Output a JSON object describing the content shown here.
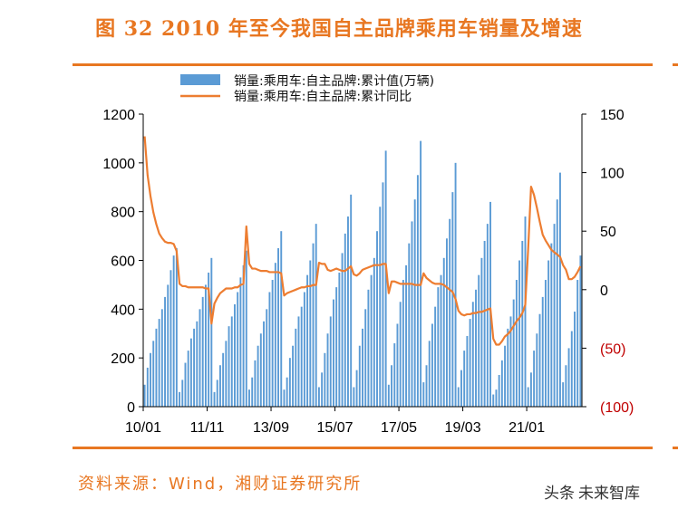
{
  "title": "图 32 2010 年至今我国自主品牌乘用车销量及增速",
  "source": "资料来源：Wind，湘财证券研究所",
  "watermark": {
    "prefix": "头条",
    "brand": "未来智库"
  },
  "colors": {
    "accent": "#e87722",
    "bar": "#5b9bd5",
    "line": "#ed7d31",
    "negative": "#c00000"
  },
  "chart_data": {
    "type": "bar+line",
    "legend": [
      "销量:乘用车:自主品牌:累计值(万辆)",
      "销量:乘用车:自主品牌:累计同比"
    ],
    "legend_position": "top-center",
    "grid": false,
    "x_tick_labels": [
      "10/01",
      "11/11",
      "13/09",
      "15/07",
      "17/05",
      "19/03",
      "21/01"
    ],
    "y_left": {
      "range": [
        0,
        1200
      ],
      "ticks": [
        "0",
        "200",
        "400",
        "600",
        "800",
        "1000",
        "1200"
      ]
    },
    "y_right": {
      "range": [
        -100,
        150
      ],
      "ticks": [
        "(100)",
        "(50)",
        "0",
        "50",
        "100",
        "150"
      ]
    },
    "series": [
      {
        "name": "销量:乘用车:自主品牌:累计值(万辆)",
        "type": "bar",
        "axis": "left",
        "years": [
          {
            "year": 2010,
            "values": [
              90,
              160,
              220,
              270,
              320,
              360,
              400,
              450,
              500,
              560,
              620,
              650
            ]
          },
          {
            "year": 2011,
            "values": [
              60,
              110,
              180,
              230,
              280,
              320,
              350,
              400,
              450,
              500,
              550,
              610
            ]
          },
          {
            "year": 2012,
            "values": [
              60,
              110,
              170,
              220,
              270,
              330,
              370,
              420,
              470,
              530,
              580,
              640
            ]
          },
          {
            "year": 2013,
            "values": [
              70,
              120,
              190,
              250,
              300,
              350,
              400,
              470,
              520,
              590,
              650,
              720
            ]
          },
          {
            "year": 2014,
            "values": [
              70,
              120,
              200,
              250,
              320,
              370,
              410,
              470,
              540,
              600,
              670,
              750
            ]
          },
          {
            "year": 2015,
            "values": [
              80,
              140,
              220,
              300,
              370,
              440,
              490,
              550,
              630,
              710,
              780,
              870
            ]
          },
          {
            "year": 2016,
            "values": [
              80,
              150,
              250,
              320,
              400,
              480,
              540,
              610,
              720,
              820,
              920,
              1050
            ]
          },
          {
            "year": 2017,
            "values": [
              90,
              170,
              260,
              340,
              430,
              520,
              580,
              670,
              760,
              850,
              950,
              1090
            ]
          },
          {
            "year": 2018,
            "values": [
              100,
              170,
              270,
              340,
              410,
              490,
              540,
              610,
              690,
              770,
              880,
              1000
            ]
          },
          {
            "year": 2019,
            "values": [
              80,
              150,
              230,
              290,
              360,
              430,
              480,
              540,
              610,
              680,
              750,
              840
            ]
          },
          {
            "year": 2020,
            "values": [
              50,
              70,
              130,
              190,
              250,
              320,
              370,
              440,
              520,
              600,
              680,
              780
            ]
          },
          {
            "year": 2021,
            "values": [
              80,
              140,
              230,
              300,
              380,
              450,
              520,
              600,
              670,
              750,
              850,
              960
            ]
          },
          {
            "year": 2022,
            "values": [
              100,
              170,
              240,
              310,
              390,
              520,
              620
            ]
          }
        ]
      },
      {
        "name": "销量:乘用车:自主品牌:累计同比",
        "type": "line",
        "axis": "right",
        "years": [
          {
            "year": 2010,
            "values": [
              131,
              98,
              80,
              66,
              56,
              48,
              44,
              41,
              40,
              40,
              39,
              33
            ]
          },
          {
            "year": 2011,
            "values": [
              5,
              3,
              3,
              2,
              2,
              2,
              2,
              2,
              2,
              1,
              1,
              -29
            ]
          },
          {
            "year": 2012,
            "values": [
              -12,
              -7,
              -3,
              -1,
              1,
              1,
              1,
              2,
              2,
              4,
              5,
              54
            ]
          },
          {
            "year": 2013,
            "values": [
              22,
              18,
              18,
              17,
              16,
              16,
              16,
              15,
              15,
              15,
              15,
              14
            ]
          },
          {
            "year": 2014,
            "values": [
              -5,
              -3,
              -2,
              -1,
              0,
              1,
              2,
              2,
              3,
              3,
              4,
              4
            ]
          },
          {
            "year": 2015,
            "values": [
              23,
              22,
              22,
              17,
              16,
              17,
              18,
              17,
              16,
              16,
              18,
              20
            ]
          },
          {
            "year": 2016,
            "values": [
              13,
              12,
              14,
              17,
              18,
              19,
              20,
              21,
              21,
              21,
              22,
              22
            ]
          },
          {
            "year": 2017,
            "values": [
              -3,
              7,
              7,
              6,
              5,
              5,
              5,
              5,
              5,
              4,
              4,
              4
            ]
          },
          {
            "year": 2018,
            "values": [
              14,
              10,
              8,
              6,
              5,
              5,
              5,
              4,
              2,
              0,
              -2,
              -8
            ]
          },
          {
            "year": 2019,
            "values": [
              -18,
              -21,
              -22,
              -21,
              -21,
              -20,
              -20,
              -19,
              -19,
              -18,
              -17,
              -16
            ]
          },
          {
            "year": 2020,
            "values": [
              -42,
              -47,
              -47,
              -44,
              -40,
              -38,
              -35,
              -31,
              -27,
              -24,
              -20,
              -13
            ]
          },
          {
            "year": 2021,
            "values": [
              35,
              88,
              81,
              70,
              58,
              47,
              42,
              38,
              34,
              32,
              30,
              28
            ]
          },
          {
            "year": 2022,
            "values": [
              21,
              17,
              9,
              9,
              11,
              15,
              20
            ]
          }
        ]
      }
    ]
  }
}
